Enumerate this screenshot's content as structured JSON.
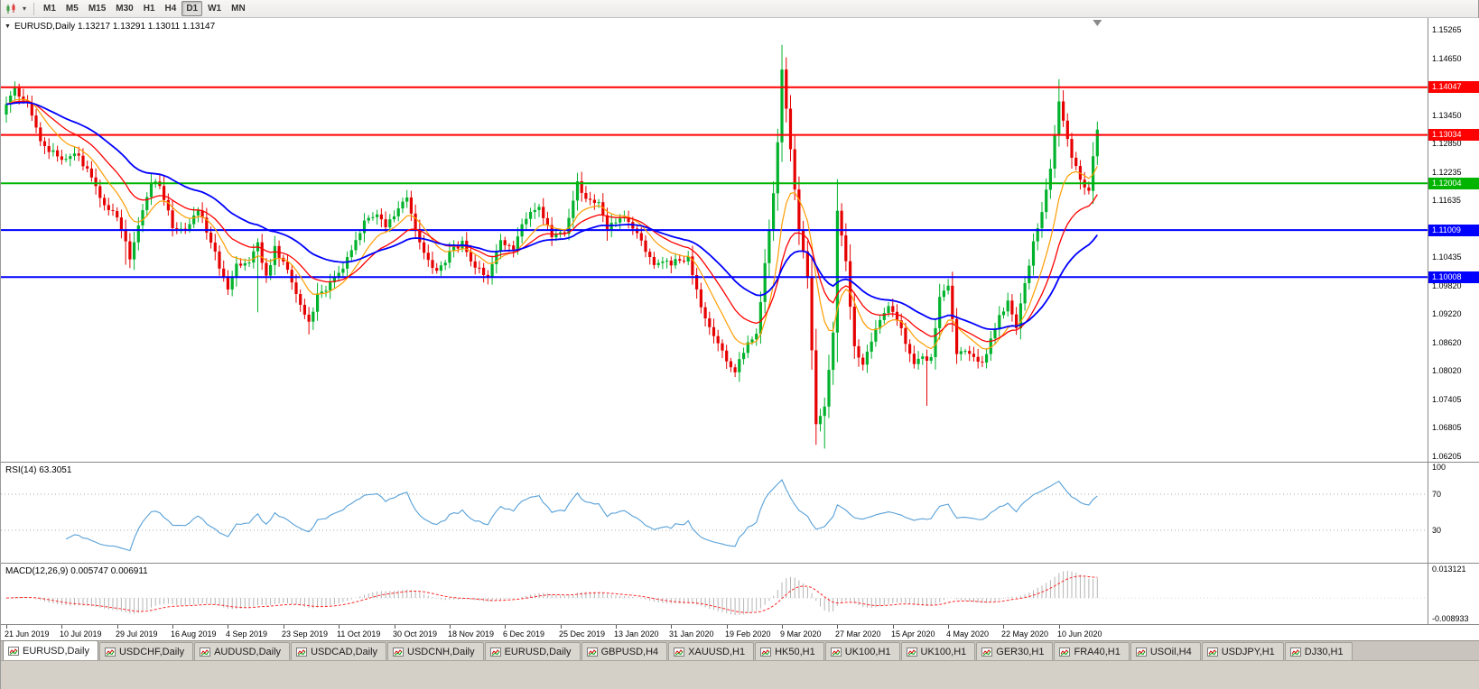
{
  "toolbar": {
    "chart_menu_caret": "▾",
    "timeframes": [
      {
        "label": "M1",
        "active": false
      },
      {
        "label": "M5",
        "active": false
      },
      {
        "label": "M15",
        "active": false
      },
      {
        "label": "M30",
        "active": false
      },
      {
        "label": "H1",
        "active": false
      },
      {
        "label": "H4",
        "active": false
      },
      {
        "label": "D1",
        "active": true
      },
      {
        "label": "W1",
        "active": false
      },
      {
        "label": "MN",
        "active": false
      }
    ]
  },
  "chart": {
    "title": "EURUSD,Daily 1.13217 1.13291 1.13011 1.13147",
    "title_arrow": "▼",
    "symbol": "EURUSD",
    "period": "Daily",
    "open": "1.13217",
    "high": "1.13291",
    "low": "1.13011",
    "close": "1.13147",
    "price_axis": {
      "labels": [
        "1.15265",
        "1.14650",
        "1.13450",
        "1.12850",
        "1.12235",
        "1.11635",
        "1.10435",
        "1.09820",
        "1.09220",
        "1.08620",
        "1.08020",
        "1.07405",
        "1.06805",
        "1.06205"
      ]
    }
  },
  "rsi": {
    "label": "RSI(14) 63.3051",
    "period": 14,
    "value": "63.3051",
    "color": "#57a0d8",
    "levels": [
      {
        "value": 100,
        "label": "100",
        "line": false
      },
      {
        "value": 70,
        "label": "70",
        "line": true
      },
      {
        "value": 30,
        "label": "30",
        "line": true
      }
    ]
  },
  "macd": {
    "label": "MACD(12,26,9) 0.005747 0.006911",
    "fast": 12,
    "slow": 26,
    "signal": 9,
    "main_value": "0.005747",
    "signal_value": "0.006911",
    "scale_max": 0.013121,
    "scale_min": -0.008933,
    "axis_labels": [
      "0.013121",
      "-0.008933"
    ],
    "bar_color": "#b4b4b4",
    "signal_color": "#ff2a2a"
  },
  "date_axis": {
    "labels": [
      "21 Jun 2019",
      "10 Jul 2019",
      "29 Jul 2019",
      "16 Aug 2019",
      "4 Sep 2019",
      "23 Sep 2019",
      "11 Oct 2019",
      "30 Oct 2019",
      "18 Nov 2019",
      "6 Dec 2019",
      "25 Dec 2019",
      "13 Jan 2020",
      "31 Jan 2020",
      "19 Feb 2020",
      "9 Mar 2020",
      "27 Mar 2020",
      "15 Apr 2020",
      "4 May 2020",
      "22 May 2020",
      "10 Jun 2020"
    ]
  },
  "tabs": [
    {
      "label": "EURUSD,Daily",
      "active": true
    },
    {
      "label": "USDCHF,Daily",
      "active": false
    },
    {
      "label": "AUDUSD,Daily",
      "active": false
    },
    {
      "label": "USDCAD,Daily",
      "active": false
    },
    {
      "label": "USDCNH,Daily",
      "active": false
    },
    {
      "label": "EURUSD,Daily",
      "active": false
    },
    {
      "label": "GBPUSD,H4",
      "active": false
    },
    {
      "label": "XAUUSD,H1",
      "active": false
    },
    {
      "label": "HK50,H1",
      "active": false
    },
    {
      "label": "UK100,H1",
      "active": false
    },
    {
      "label": "UK100,H1",
      "active": false
    },
    {
      "label": "GER30,H1",
      "active": false
    },
    {
      "label": "FRA40,H1",
      "active": false
    },
    {
      "label": "USOil,H4",
      "active": false
    },
    {
      "label": "USDJPY,H1",
      "active": false
    },
    {
      "label": "DJ30,H1",
      "active": false
    }
  ],
  "chart_data": {
    "type": "candlestick",
    "symbol": "EURUSD",
    "timeframe": "Daily",
    "bar_count": 257,
    "label_step": 13,
    "seed": 7,
    "last_close": 1.13147,
    "price_range_top": 1.1552,
    "price_range_bottom": 1.061,
    "candle_colors": {
      "up": "#00b22c",
      "down": "#e60000"
    },
    "anchors": [
      [
        0,
        1.137
      ],
      [
        2,
        1.1398
      ],
      [
        5,
        1.1373
      ],
      [
        8,
        1.1285
      ],
      [
        13,
        1.1253
      ],
      [
        16,
        1.127
      ],
      [
        20,
        1.1215
      ],
      [
        23,
        1.1151
      ],
      [
        26,
        1.1128
      ],
      [
        28,
        1.1075
      ],
      [
        29,
        1.1045
      ],
      [
        31,
        1.1108
      ],
      [
        34,
        1.1197
      ],
      [
        36,
        1.12
      ],
      [
        39,
        1.111
      ],
      [
        42,
        1.1098
      ],
      [
        45,
        1.1144
      ],
      [
        48,
        1.1078
      ],
      [
        52,
        1.0968
      ],
      [
        54,
        1.1028
      ],
      [
        57,
        1.1032
      ],
      [
        59,
        1.1073
      ],
      [
        61,
        1.1
      ],
      [
        63,
        1.1062
      ],
      [
        66,
        1.1012
      ],
      [
        69,
        1.0942
      ],
      [
        71,
        1.0902
      ],
      [
        73,
        1.0965
      ],
      [
        76,
        1.0985
      ],
      [
        79,
        1.1025
      ],
      [
        82,
        1.1075
      ],
      [
        84,
        1.1125
      ],
      [
        87,
        1.1132
      ],
      [
        89,
        1.1105
      ],
      [
        92,
        1.115
      ],
      [
        94,
        1.1165
      ],
      [
        97,
        1.107
      ],
      [
        101,
        1.1012
      ],
      [
        104,
        1.1051
      ],
      [
        107,
        1.1074
      ],
      [
        110,
        1.1021
      ],
      [
        113,
        1.1002
      ],
      [
        116,
        1.1077
      ],
      [
        119,
        1.1064
      ],
      [
        122,
        1.113
      ],
      [
        125,
        1.1146
      ],
      [
        128,
        1.109
      ],
      [
        131,
        1.1098
      ],
      [
        134,
        1.12
      ],
      [
        136,
        1.1172
      ],
      [
        139,
        1.116
      ],
      [
        141,
        1.1104
      ],
      [
        145,
        1.1128
      ],
      [
        148,
        1.1095
      ],
      [
        152,
        1.1023
      ],
      [
        156,
        1.1032
      ],
      [
        160,
        1.1042
      ],
      [
        164,
        1.091
      ],
      [
        168,
        1.0839
      ],
      [
        171,
        1.0795
      ],
      [
        173,
        1.0846
      ],
      [
        176,
        1.088
      ],
      [
        178,
        1.1026
      ],
      [
        180,
        1.1173
      ],
      [
        181,
        1.1284
      ],
      [
        182,
        1.1446
      ],
      [
        184,
        1.127
      ],
      [
        186,
        1.1105
      ],
      [
        188,
        1.0995
      ],
      [
        190,
        1.0692
      ],
      [
        192,
        1.0725
      ],
      [
        194,
        1.088
      ],
      [
        195,
        1.114
      ],
      [
        197,
        1.103
      ],
      [
        199,
        1.0855
      ],
      [
        201,
        1.0809
      ],
      [
        204,
        1.089
      ],
      [
        207,
        1.0935
      ],
      [
        209,
        1.091
      ],
      [
        211,
        1.0862
      ],
      [
        213,
        1.082
      ],
      [
        217,
        1.0832
      ],
      [
        219,
        1.0955
      ],
      [
        221,
        1.098
      ],
      [
        223,
        1.0837
      ],
      [
        226,
        1.084
      ],
      [
        229,
        1.0817
      ],
      [
        233,
        1.0915
      ],
      [
        235,
        1.0949
      ],
      [
        237,
        1.0897
      ],
      [
        239,
        1.0983
      ],
      [
        241,
        1.1076
      ],
      [
        243,
        1.1134
      ],
      [
        245,
        1.1234
      ],
      [
        247,
        1.1374
      ],
      [
        250,
        1.1257
      ],
      [
        252,
        1.1205
      ],
      [
        254,
        1.1186
      ],
      [
        255,
        1.126
      ],
      [
        256,
        1.13147
      ]
    ],
    "wick_overrides": [
      {
        "i": 2,
        "high": 1.1412
      },
      {
        "i": 28,
        "low": 1.1027
      },
      {
        "i": 59,
        "low": 1.0926
      },
      {
        "i": 71,
        "low": 1.0879
      },
      {
        "i": 172,
        "low": 1.0778
      },
      {
        "i": 182,
        "high": 1.1495
      },
      {
        "i": 190,
        "low": 1.0656
      },
      {
        "i": 192,
        "low": 1.0636
      },
      {
        "i": 216,
        "low": 1.0727
      },
      {
        "i": 247,
        "high": 1.1422
      }
    ],
    "horizontal_levels": [
      {
        "price": 1.14047,
        "label": "1.14047",
        "color": "#ff0000"
      },
      {
        "price": 1.13034,
        "label": "1.13034",
        "color": "#ff0000"
      },
      {
        "price": 1.12004,
        "label": "1.12004",
        "color": "#00b400"
      },
      {
        "price": 1.11009,
        "label": "1.11009",
        "color": "#0000ff"
      },
      {
        "price": 1.10008,
        "label": "1.10008",
        "color": "#0000ff"
      }
    ],
    "moving_averages": [
      {
        "period": 10,
        "color": "#ff9c00",
        "width": 1.2
      },
      {
        "period": 20,
        "color": "#ff0000",
        "width": 1.3
      },
      {
        "period": 40,
        "color": "#0000ff",
        "width": 1.8
      }
    ]
  }
}
